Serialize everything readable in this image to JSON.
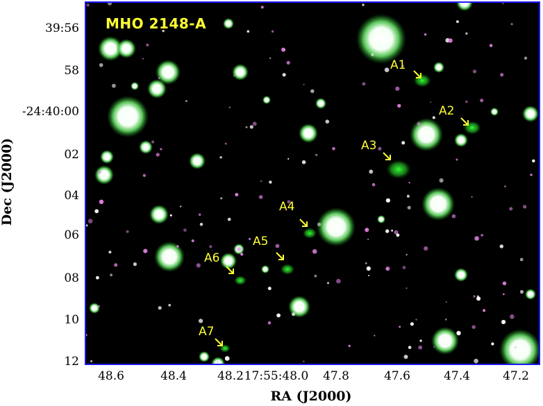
{
  "figure": {
    "title": "MHO 2148-A",
    "x_axis_label": "RA (J2000)",
    "y_axis_label": "Dec (J2000)",
    "x_ticks": [
      "48.6",
      "48.4",
      "48.2",
      "17:55:48.0",
      "47.8",
      "47.6",
      "47.4",
      "47.2"
    ],
    "y_ticks": [
      "39:56",
      "58",
      "-24:40:00",
      "02",
      "04",
      "06",
      "08",
      "10",
      "12"
    ],
    "knots": [
      "A1",
      "A2",
      "A3",
      "A4",
      "A5",
      "A6",
      "A7"
    ],
    "colors": {
      "frame": "#1a1aff",
      "labels": "#ffff33",
      "stars": "#ffffff",
      "halo": "#33cc33",
      "magenta": "#e080e0"
    }
  }
}
